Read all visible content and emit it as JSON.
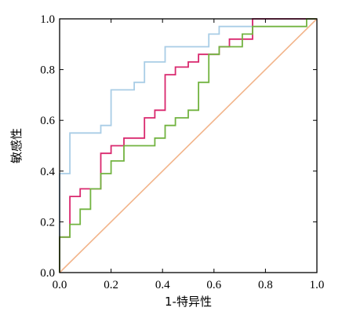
{
  "chart_data": {
    "type": "line",
    "title": "",
    "xlabel": "1-特异性",
    "ylabel": "敏感性",
    "xlim": [
      0,
      1
    ],
    "ylim": [
      0,
      1
    ],
    "xticks": [
      "0.0",
      "0.2",
      "0.4",
      "0.6",
      "0.8",
      "1.0"
    ],
    "yticks": [
      "0.0",
      "0.2",
      "0.4",
      "0.6",
      "0.8",
      "1.0"
    ],
    "grid": false,
    "legend": "none",
    "series": [
      {
        "color": "#a9cde6",
        "style": "step",
        "points": [
          [
            0,
            0
          ],
          [
            0,
            0.39
          ],
          [
            0.04,
            0.39
          ],
          [
            0.04,
            0.55
          ],
          [
            0.16,
            0.55
          ],
          [
            0.16,
            0.58
          ],
          [
            0.2,
            0.58
          ],
          [
            0.2,
            0.72
          ],
          [
            0.29,
            0.72
          ],
          [
            0.29,
            0.75
          ],
          [
            0.33,
            0.75
          ],
          [
            0.33,
            0.83
          ],
          [
            0.41,
            0.83
          ],
          [
            0.41,
            0.89
          ],
          [
            0.58,
            0.89
          ],
          [
            0.58,
            0.94
          ],
          [
            0.62,
            0.94
          ],
          [
            0.62,
            0.97
          ],
          [
            0.75,
            0.97
          ],
          [
            0.75,
            1.0
          ],
          [
            1.0,
            1.0
          ]
        ]
      },
      {
        "color": "#d9286e",
        "style": "step",
        "points": [
          [
            0,
            0
          ],
          [
            0,
            0.14
          ],
          [
            0.04,
            0.14
          ],
          [
            0.04,
            0.3
          ],
          [
            0.08,
            0.3
          ],
          [
            0.08,
            0.33
          ],
          [
            0.16,
            0.33
          ],
          [
            0.16,
            0.47
          ],
          [
            0.2,
            0.47
          ],
          [
            0.2,
            0.5
          ],
          [
            0.25,
            0.5
          ],
          [
            0.25,
            0.53
          ],
          [
            0.33,
            0.53
          ],
          [
            0.33,
            0.61
          ],
          [
            0.37,
            0.61
          ],
          [
            0.37,
            0.64
          ],
          [
            0.41,
            0.64
          ],
          [
            0.41,
            0.78
          ],
          [
            0.45,
            0.78
          ],
          [
            0.45,
            0.81
          ],
          [
            0.5,
            0.81
          ],
          [
            0.5,
            0.83
          ],
          [
            0.54,
            0.83
          ],
          [
            0.54,
            0.86
          ],
          [
            0.62,
            0.86
          ],
          [
            0.62,
            0.89
          ],
          [
            0.66,
            0.89
          ],
          [
            0.66,
            0.92
          ],
          [
            0.75,
            0.92
          ],
          [
            0.75,
            1.0
          ],
          [
            1.0,
            1.0
          ]
        ]
      },
      {
        "color": "#72b340",
        "style": "step",
        "points": [
          [
            0,
            0
          ],
          [
            0,
            0.14
          ],
          [
            0.04,
            0.14
          ],
          [
            0.04,
            0.19
          ],
          [
            0.08,
            0.19
          ],
          [
            0.08,
            0.25
          ],
          [
            0.12,
            0.25
          ],
          [
            0.12,
            0.33
          ],
          [
            0.16,
            0.33
          ],
          [
            0.16,
            0.39
          ],
          [
            0.2,
            0.39
          ],
          [
            0.2,
            0.44
          ],
          [
            0.25,
            0.44
          ],
          [
            0.25,
            0.5
          ],
          [
            0.37,
            0.5
          ],
          [
            0.37,
            0.53
          ],
          [
            0.41,
            0.53
          ],
          [
            0.41,
            0.58
          ],
          [
            0.45,
            0.58
          ],
          [
            0.45,
            0.61
          ],
          [
            0.5,
            0.61
          ],
          [
            0.5,
            0.64
          ],
          [
            0.54,
            0.64
          ],
          [
            0.54,
            0.75
          ],
          [
            0.58,
            0.75
          ],
          [
            0.58,
            0.86
          ],
          [
            0.62,
            0.86
          ],
          [
            0.62,
            0.89
          ],
          [
            0.71,
            0.89
          ],
          [
            0.71,
            0.94
          ],
          [
            0.75,
            0.94
          ],
          [
            0.75,
            0.97
          ],
          [
            0.96,
            0.97
          ],
          [
            0.96,
            1.0
          ],
          [
            1.0,
            1.0
          ]
        ]
      },
      {
        "color": "#f2b48a",
        "style": "diagonal",
        "points": [
          [
            0,
            0
          ],
          [
            1,
            1
          ]
        ]
      }
    ]
  }
}
